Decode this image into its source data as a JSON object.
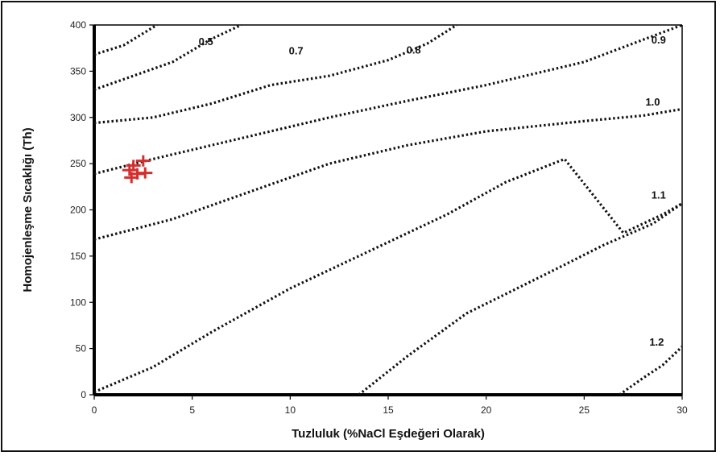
{
  "chart_data": {
    "type": "line",
    "title": "",
    "xlabel": "Tuzluluk (%NaCl Eşdeğeri Olarak)",
    "ylabel": "Homojenleşme Sıcaklığı (Th)",
    "xlim": [
      0,
      30
    ],
    "ylim": [
      0,
      400
    ],
    "xticks": [
      0,
      5,
      10,
      15,
      20,
      25,
      30
    ],
    "yticks": [
      0,
      50,
      100,
      150,
      200,
      250,
      300,
      350,
      400
    ],
    "grid": false,
    "line_style": "dotted",
    "contours": [
      {
        "label": "0.5",
        "points": [
          [
            0,
            368
          ],
          [
            1.5,
            378
          ],
          [
            3.2,
            400
          ]
        ]
      },
      {
        "label": "0.7",
        "points": [
          [
            0,
            330
          ],
          [
            2,
            345
          ],
          [
            4,
            360
          ],
          [
            6,
            385
          ],
          [
            7.5,
            400
          ]
        ]
      },
      {
        "label": "0.8",
        "points": [
          [
            0,
            294
          ],
          [
            3,
            300
          ],
          [
            6,
            315
          ],
          [
            9,
            335
          ],
          [
            12,
            345
          ],
          [
            15,
            362
          ],
          [
            17,
            380
          ],
          [
            18.5,
            400
          ]
        ]
      },
      {
        "label": "0.9",
        "points": [
          [
            0,
            239
          ],
          [
            3,
            255
          ],
          [
            6,
            270
          ],
          [
            9,
            285
          ],
          [
            12,
            300
          ],
          [
            16,
            318
          ],
          [
            20,
            335
          ],
          [
            25,
            360
          ],
          [
            29,
            392
          ],
          [
            30,
            400
          ]
        ]
      },
      {
        "label": "1.0",
        "points": [
          [
            0,
            168
          ],
          [
            4,
            190
          ],
          [
            8,
            220
          ],
          [
            12,
            250
          ],
          [
            16,
            270
          ],
          [
            20,
            285
          ],
          [
            25,
            296
          ],
          [
            28,
            302
          ],
          [
            30,
            309
          ]
        ]
      },
      {
        "label": "1.1",
        "points": [
          [
            0,
            3
          ],
          [
            3,
            30
          ],
          [
            6,
            68
          ],
          [
            10,
            115
          ],
          [
            14,
            155
          ],
          [
            18,
            195
          ],
          [
            21,
            230
          ],
          [
            24,
            255
          ],
          [
            27,
            175
          ],
          [
            29,
            195
          ],
          [
            30,
            207
          ]
        ]
      },
      {
        "label": "1.2",
        "points": [
          [
            13.5,
            0
          ],
          [
            16,
            42
          ],
          [
            19,
            88
          ],
          [
            23,
            130
          ],
          [
            26,
            162
          ],
          [
            28.5,
            185
          ],
          [
            30,
            207
          ]
        ]
      },
      {
        "label": "",
        "points": [
          [
            26.8,
            0
          ],
          [
            28,
            18
          ],
          [
            29,
            32
          ],
          [
            30,
            52
          ]
        ]
      }
    ],
    "points": [
      [
        2.0,
        248
      ],
      [
        2.5,
        253
      ],
      [
        1.8,
        243
      ],
      [
        2.2,
        239
      ],
      [
        2.6,
        240
      ],
      [
        1.9,
        235
      ]
    ],
    "point_color": "#d32f2f",
    "label_positions_note": ""
  }
}
